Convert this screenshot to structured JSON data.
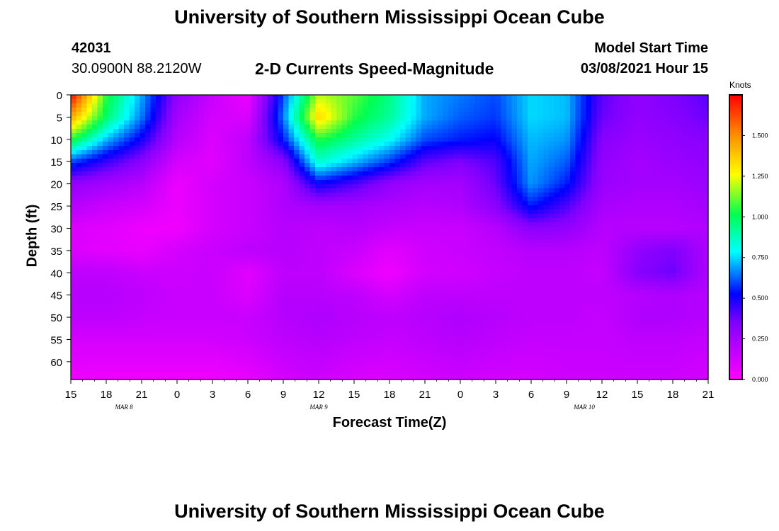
{
  "header": {
    "title": "University of Southern Mississippi Ocean Cube",
    "station_id": "42031",
    "coordinates": "30.0900N 88.2120W",
    "subtitle": "2-D Currents Speed-Magnitude",
    "model_label": "Model Start Time",
    "model_time": "03/08/2021 Hour 15",
    "footer_title": "University of Southern Mississippi Ocean Cube"
  },
  "chart_data": {
    "type": "heatmap",
    "title": "2-D Currents Speed-Magnitude",
    "xlabel": "Forecast Time(Z)",
    "ylabel": "Depth (ft)",
    "x_hours": [
      0,
      3,
      6,
      9,
      12,
      15,
      18,
      21,
      24,
      27,
      30,
      33,
      36,
      39,
      42,
      45,
      48,
      51,
      54
    ],
    "x_tick_labels": [
      "15",
      "18",
      "21",
      "0",
      "3",
      "6",
      "9",
      "12",
      "15",
      "18",
      "21",
      "0",
      "3",
      "6",
      "9",
      "12",
      "15",
      "18",
      "21"
    ],
    "day_labels": [
      {
        "label": "MAR 8",
        "hour": 4.5
      },
      {
        "label": "MAR 9",
        "hour": 21
      },
      {
        "label": "MAR 10",
        "hour": 43.5
      }
    ],
    "xlim": [
      0,
      54
    ],
    "y_ticks": [
      0,
      5,
      10,
      15,
      20,
      25,
      30,
      35,
      40,
      45,
      50,
      55,
      60
    ],
    "ylim": [
      0,
      64
    ],
    "y_inverted": true,
    "colorbar": {
      "label": "Knots",
      "ticks": [
        "0.000",
        "0.250",
        "0.500",
        "0.750",
        "1.000",
        "1.250",
        "1.500"
      ],
      "tick_values": [
        0,
        0.25,
        0.5,
        0.75,
        1.0,
        1.25,
        1.5
      ],
      "range": [
        0,
        1.75
      ]
    },
    "grid_x_hours": [
      0,
      3,
      6,
      9,
      12,
      15,
      18,
      21,
      24,
      27,
      30,
      33,
      36,
      39,
      42,
      45,
      48,
      51,
      54
    ],
    "grid_depths": [
      0,
      5,
      10,
      15,
      20,
      25,
      30,
      35,
      40,
      45,
      50,
      55,
      64
    ],
    "values": [
      [
        1.75,
        1.05,
        0.7,
        0.3,
        0.15,
        0.05,
        0.6,
        1.2,
        1.1,
        0.95,
        0.7,
        0.65,
        0.6,
        0.75,
        0.72,
        0.4,
        0.3,
        0.35,
        0.4
      ],
      [
        1.45,
        0.98,
        0.65,
        0.25,
        0.12,
        0.1,
        0.65,
        1.35,
        1.05,
        0.92,
        0.7,
        0.62,
        0.58,
        0.75,
        0.72,
        0.38,
        0.3,
        0.33,
        0.38
      ],
      [
        1.05,
        0.72,
        0.5,
        0.2,
        0.1,
        0.18,
        0.55,
        1.05,
        0.92,
        0.8,
        0.6,
        0.55,
        0.52,
        0.72,
        0.68,
        0.33,
        0.28,
        0.3,
        0.33
      ],
      [
        0.6,
        0.45,
        0.32,
        0.12,
        0.08,
        0.18,
        0.32,
        0.85,
        0.72,
        0.58,
        0.4,
        0.35,
        0.42,
        0.7,
        0.62,
        0.3,
        0.25,
        0.28,
        0.3
      ],
      [
        0.3,
        0.25,
        0.2,
        0.05,
        0.12,
        0.15,
        0.22,
        0.52,
        0.42,
        0.3,
        0.25,
        0.25,
        0.38,
        0.68,
        0.55,
        0.28,
        0.25,
        0.25,
        0.28
      ],
      [
        0.2,
        0.15,
        0.12,
        0.05,
        0.12,
        0.15,
        0.22,
        0.25,
        0.25,
        0.22,
        0.2,
        0.22,
        0.32,
        0.55,
        0.42,
        0.24,
        0.22,
        0.22,
        0.25
      ],
      [
        0.1,
        0.08,
        0.05,
        0.04,
        0.12,
        0.15,
        0.2,
        0.18,
        0.2,
        0.16,
        0.15,
        0.15,
        0.2,
        0.32,
        0.3,
        0.2,
        0.2,
        0.2,
        0.22
      ],
      [
        0.1,
        0.08,
        0.06,
        0.12,
        0.15,
        0.18,
        0.2,
        0.18,
        0.15,
        0.08,
        0.13,
        0.15,
        0.17,
        0.2,
        0.2,
        0.18,
        0.3,
        0.35,
        0.22
      ],
      [
        0.18,
        0.18,
        0.15,
        0.14,
        0.15,
        0.08,
        0.18,
        0.18,
        0.1,
        0.04,
        0.12,
        0.13,
        0.16,
        0.18,
        0.18,
        0.16,
        0.33,
        0.38,
        0.22
      ],
      [
        0.2,
        0.2,
        0.18,
        0.15,
        0.15,
        0.1,
        0.2,
        0.2,
        0.18,
        0.12,
        0.18,
        0.18,
        0.18,
        0.18,
        0.18,
        0.18,
        0.2,
        0.22,
        0.2
      ],
      [
        0.18,
        0.18,
        0.16,
        0.15,
        0.15,
        0.15,
        0.2,
        0.22,
        0.2,
        0.18,
        0.2,
        0.22,
        0.2,
        0.18,
        0.18,
        0.16,
        0.22,
        0.22,
        0.2
      ],
      [
        0.12,
        0.12,
        0.12,
        0.12,
        0.12,
        0.14,
        0.18,
        0.2,
        0.18,
        0.16,
        0.18,
        0.2,
        0.18,
        0.16,
        0.16,
        0.16,
        0.18,
        0.18,
        0.16
      ],
      [
        0.05,
        0.04,
        0.04,
        0.04,
        0.04,
        0.06,
        0.12,
        0.14,
        0.1,
        0.1,
        0.12,
        0.14,
        0.12,
        0.12,
        0.14,
        0.14,
        0.14,
        0.14,
        0.12
      ]
    ]
  }
}
